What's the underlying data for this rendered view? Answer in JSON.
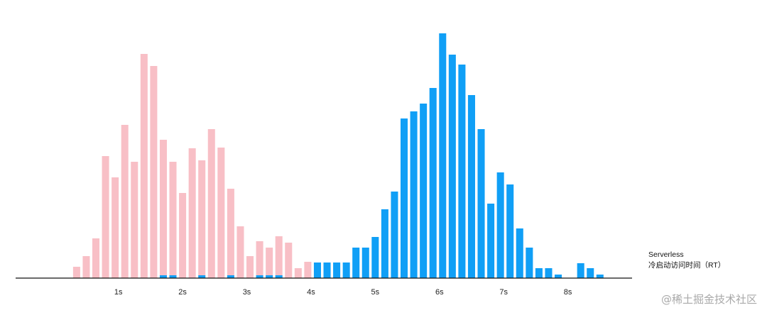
{
  "chart_data": {
    "type": "bar",
    "x_tick_labels": [
      "1s",
      "2s",
      "3s",
      "4s",
      "5s",
      "6s",
      "7s",
      "8s"
    ],
    "x_title_line1": "Serverless",
    "x_title_line2": "冷启动访问时间（RT）",
    "colors": {
      "series_a": "#f8bfc6",
      "series_b": "#109ff6",
      "axis": "#111111"
    },
    "series": [
      {
        "values": [
          [
            0.35,
            16
          ],
          [
            0.5,
            31
          ],
          [
            0.65,
            56
          ],
          [
            0.8,
            172
          ],
          [
            0.95,
            142
          ],
          [
            1.1,
            216
          ],
          [
            1.25,
            164
          ],
          [
            1.4,
            316
          ],
          [
            1.55,
            299
          ],
          [
            1.7,
            195
          ],
          [
            1.85,
            164
          ],
          [
            2.0,
            120
          ],
          [
            2.15,
            183
          ],
          [
            2.3,
            166
          ],
          [
            2.45,
            210
          ],
          [
            2.6,
            184
          ],
          [
            2.75,
            126
          ],
          [
            2.9,
            73
          ],
          [
            3.05,
            31
          ],
          [
            3.2,
            52
          ],
          [
            3.35,
            43
          ],
          [
            3.5,
            59
          ],
          [
            3.65,
            50
          ],
          [
            3.8,
            14
          ],
          [
            3.95,
            23
          ],
          [
            4.1,
            10
          ],
          [
            4.25,
            14
          ],
          [
            4.4,
            4
          ],
          [
            4.55,
            4
          ]
        ]
      },
      {
        "values": [
          [
            1.7,
            4
          ],
          [
            1.85,
            4
          ],
          [
            2.3,
            4
          ],
          [
            2.75,
            4
          ],
          [
            3.2,
            4
          ],
          [
            3.35,
            4
          ],
          [
            3.5,
            4
          ],
          [
            4.1,
            22
          ],
          [
            4.25,
            22
          ],
          [
            4.4,
            22
          ],
          [
            4.55,
            22
          ],
          [
            4.7,
            43
          ],
          [
            4.85,
            43
          ],
          [
            5.0,
            58
          ],
          [
            5.15,
            97
          ],
          [
            5.3,
            122
          ],
          [
            5.45,
            225
          ],
          [
            5.6,
            235
          ],
          [
            5.75,
            246
          ],
          [
            5.9,
            268
          ],
          [
            6.05,
            345
          ],
          [
            6.2,
            315
          ],
          [
            6.35,
            301
          ],
          [
            6.5,
            258
          ],
          [
            6.65,
            210
          ],
          [
            6.8,
            105
          ],
          [
            6.95,
            149
          ],
          [
            7.1,
            132
          ],
          [
            7.25,
            70
          ],
          [
            7.4,
            43
          ],
          [
            7.55,
            14
          ],
          [
            7.7,
            14
          ],
          [
            7.85,
            5
          ],
          [
            8.2,
            21
          ],
          [
            8.35,
            14
          ],
          [
            8.5,
            5
          ]
        ]
      }
    ],
    "x_range": [
      -0.6,
      9.0
    ],
    "ylim": [
      0,
      360
    ],
    "grid": false,
    "legend": "none"
  },
  "watermark": "@稀土掘金技术社区"
}
